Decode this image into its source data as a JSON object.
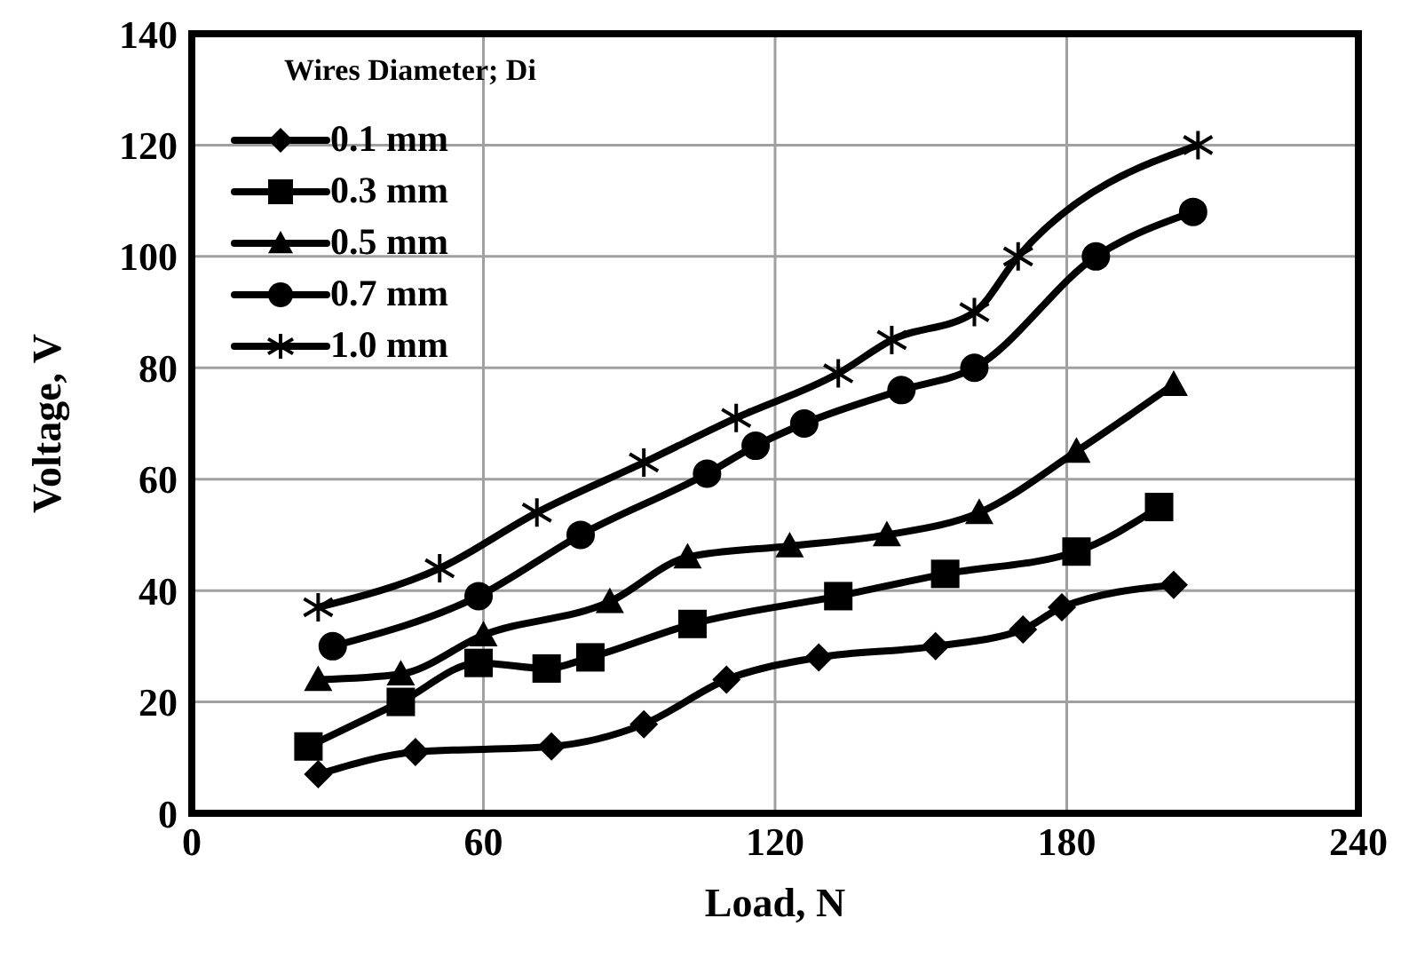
{
  "chart_data": {
    "type": "line",
    "xlabel": "Load, N",
    "ylabel": "Voltage, V",
    "legend_title": "Wires Diameter; Di",
    "xlim": [
      0,
      240
    ],
    "xticks": [
      0,
      60,
      120,
      180,
      240
    ],
    "ylim": [
      0,
      140
    ],
    "yticks": [
      0,
      20,
      40,
      60,
      80,
      100,
      120,
      140
    ],
    "grid": true,
    "legend": "top left",
    "line_style": "solid",
    "series": [
      {
        "name": "0.1 mm",
        "color": "#000000",
        "marker": "diamond",
        "x": [
          26,
          46,
          74,
          93,
          110,
          129,
          153,
          171,
          179,
          202
        ],
        "values": [
          7,
          11,
          12,
          16,
          24,
          28,
          30,
          33,
          37,
          41
        ]
      },
      {
        "name": "0.3 mm",
        "color": "#000000",
        "marker": "square",
        "x": [
          24,
          43,
          59,
          73,
          82,
          103,
          133,
          155,
          182,
          199
        ],
        "values": [
          12,
          20,
          27,
          26,
          28,
          34,
          39,
          43,
          47,
          55
        ]
      },
      {
        "name": "0.5 mm",
        "color": "#000000",
        "marker": "triangle",
        "x": [
          26,
          43,
          60,
          86,
          102,
          123,
          143,
          162,
          182,
          202
        ],
        "values": [
          24,
          25,
          32,
          38,
          46,
          48,
          50,
          54,
          65,
          77
        ]
      },
      {
        "name": "0.7 mm",
        "color": "#000000",
        "marker": "circle",
        "x": [
          29,
          59,
          80,
          106,
          116,
          126,
          146,
          161,
          186,
          206
        ],
        "values": [
          30,
          39,
          50,
          61,
          66,
          70,
          76,
          80,
          100,
          108
        ]
      },
      {
        "name": "1.0 mm",
        "color": "#000000",
        "marker": "cross",
        "x": [
          26,
          51,
          71,
          93,
          112,
          133,
          144,
          161,
          170,
          207
        ],
        "values": [
          37,
          44,
          54,
          63,
          71,
          79,
          85,
          90,
          100,
          120
        ]
      }
    ]
  }
}
